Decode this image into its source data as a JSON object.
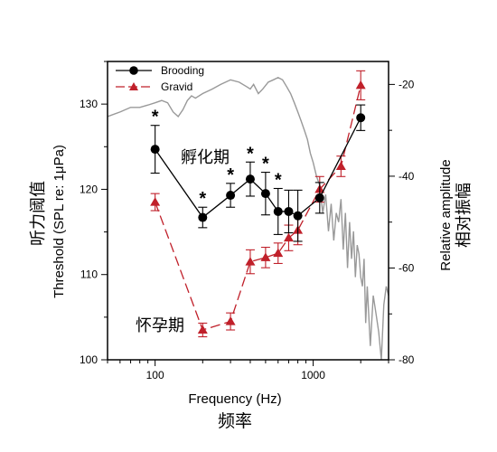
{
  "chart_data": {
    "type": "line",
    "x_scale": "log",
    "xlim": [
      50,
      3000
    ],
    "xlabel": "Frequency (Hz)",
    "xlabel_cn": "频率",
    "x_ticks": [
      100,
      1000
    ],
    "x_tick_labels": [
      "100",
      "1000"
    ],
    "ylim": [
      100,
      135
    ],
    "ylabel": "Threshold (SPL re: 1μPa)",
    "ylabel_cn": "听力阈值",
    "y_ticks": [
      100,
      110,
      120,
      130
    ],
    "y_tick_labels": [
      "100",
      "110",
      "120",
      "130"
    ],
    "y2lim": [
      -80,
      -15
    ],
    "y2label": "Relative amplitude",
    "y2label_cn": "相对振幅",
    "y2_ticks": [
      -80,
      -60,
      -40,
      -20
    ],
    "y2_tick_labels": [
      "-80",
      "-60",
      "-40",
      "-20"
    ],
    "legend": {
      "placement": "top-left",
      "entries": [
        "Brooding",
        "Gravid"
      ]
    },
    "annotations": {
      "brooding_cn": "孵化期",
      "gravid_cn": "怀孕期",
      "significance_marker": "*"
    },
    "series": [
      {
        "name": "Brooding",
        "color": "#000000",
        "marker": "circle",
        "line": "solid",
        "x": [
          100,
          200,
          300,
          400,
          500,
          600,
          700,
          800,
          1100,
          2000
        ],
        "y": [
          124.7,
          116.7,
          119.3,
          121.2,
          119.5,
          117.4,
          117.4,
          116.9,
          119.0,
          128.4
        ],
        "err": [
          2.8,
          1.2,
          1.4,
          2.0,
          2.5,
          2.7,
          2.5,
          3.0,
          1.8,
          1.5
        ],
        "significant": [
          true,
          true,
          true,
          true,
          true,
          true,
          false,
          false,
          false,
          false
        ]
      },
      {
        "name": "Gravid",
        "color": "#c0202a",
        "marker": "triangle",
        "line": "dashed",
        "x": [
          100,
          200,
          300,
          400,
          500,
          600,
          700,
          800,
          1100,
          1500,
          2000
        ],
        "y": [
          118.5,
          103.5,
          104.5,
          111.5,
          112.0,
          112.5,
          114.3,
          115.2,
          120.0,
          122.7,
          132.2
        ],
        "err": [
          1.0,
          0.8,
          1.0,
          1.4,
          1.2,
          1.2,
          1.5,
          1.7,
          1.5,
          1.2,
          1.7
        ]
      },
      {
        "name": "Relative amplitude",
        "color": "#999999",
        "line": "solid",
        "axis": "y2",
        "x": [
          50,
          60,
          70,
          80,
          90,
          100,
          110,
          120,
          130,
          140,
          150,
          160,
          170,
          180,
          200,
          230,
          260,
          300,
          340,
          380,
          400,
          420,
          450,
          480,
          520,
          560,
          600,
          640,
          680,
          720,
          760,
          800,
          840,
          880,
          920,
          960,
          1000,
          1050,
          1100,
          1150,
          1200,
          1250,
          1300,
          1350,
          1400,
          1450,
          1500,
          1550,
          1600,
          1650,
          1700,
          1750,
          1800,
          1850,
          1900,
          1950,
          2000,
          2050,
          2100,
          2150,
          2200,
          2300,
          2400,
          2500,
          2600,
          2700,
          2800,
          2900,
          3000
        ],
        "y": [
          -27,
          -26,
          -25,
          -25,
          -24.5,
          -24,
          -23.5,
          -24,
          -26,
          -27,
          -25.5,
          -23.5,
          -22.5,
          -23,
          -22,
          -21,
          -20,
          -19,
          -19.5,
          -20.5,
          -21,
          -20,
          -22,
          -21,
          -19.5,
          -19,
          -18.5,
          -19,
          -20.5,
          -22,
          -24,
          -26,
          -28,
          -30,
          -32,
          -35,
          -37,
          -40,
          -42,
          -48,
          -44,
          -52,
          -46,
          -54,
          -48,
          -50,
          -45,
          -56,
          -48,
          -60,
          -50,
          -58,
          -52,
          -62,
          -55,
          -57,
          -62,
          -64,
          -58,
          -72,
          -64,
          -77,
          -66,
          -70,
          -74,
          -80,
          -68,
          -64,
          -66
        ]
      }
    ]
  }
}
